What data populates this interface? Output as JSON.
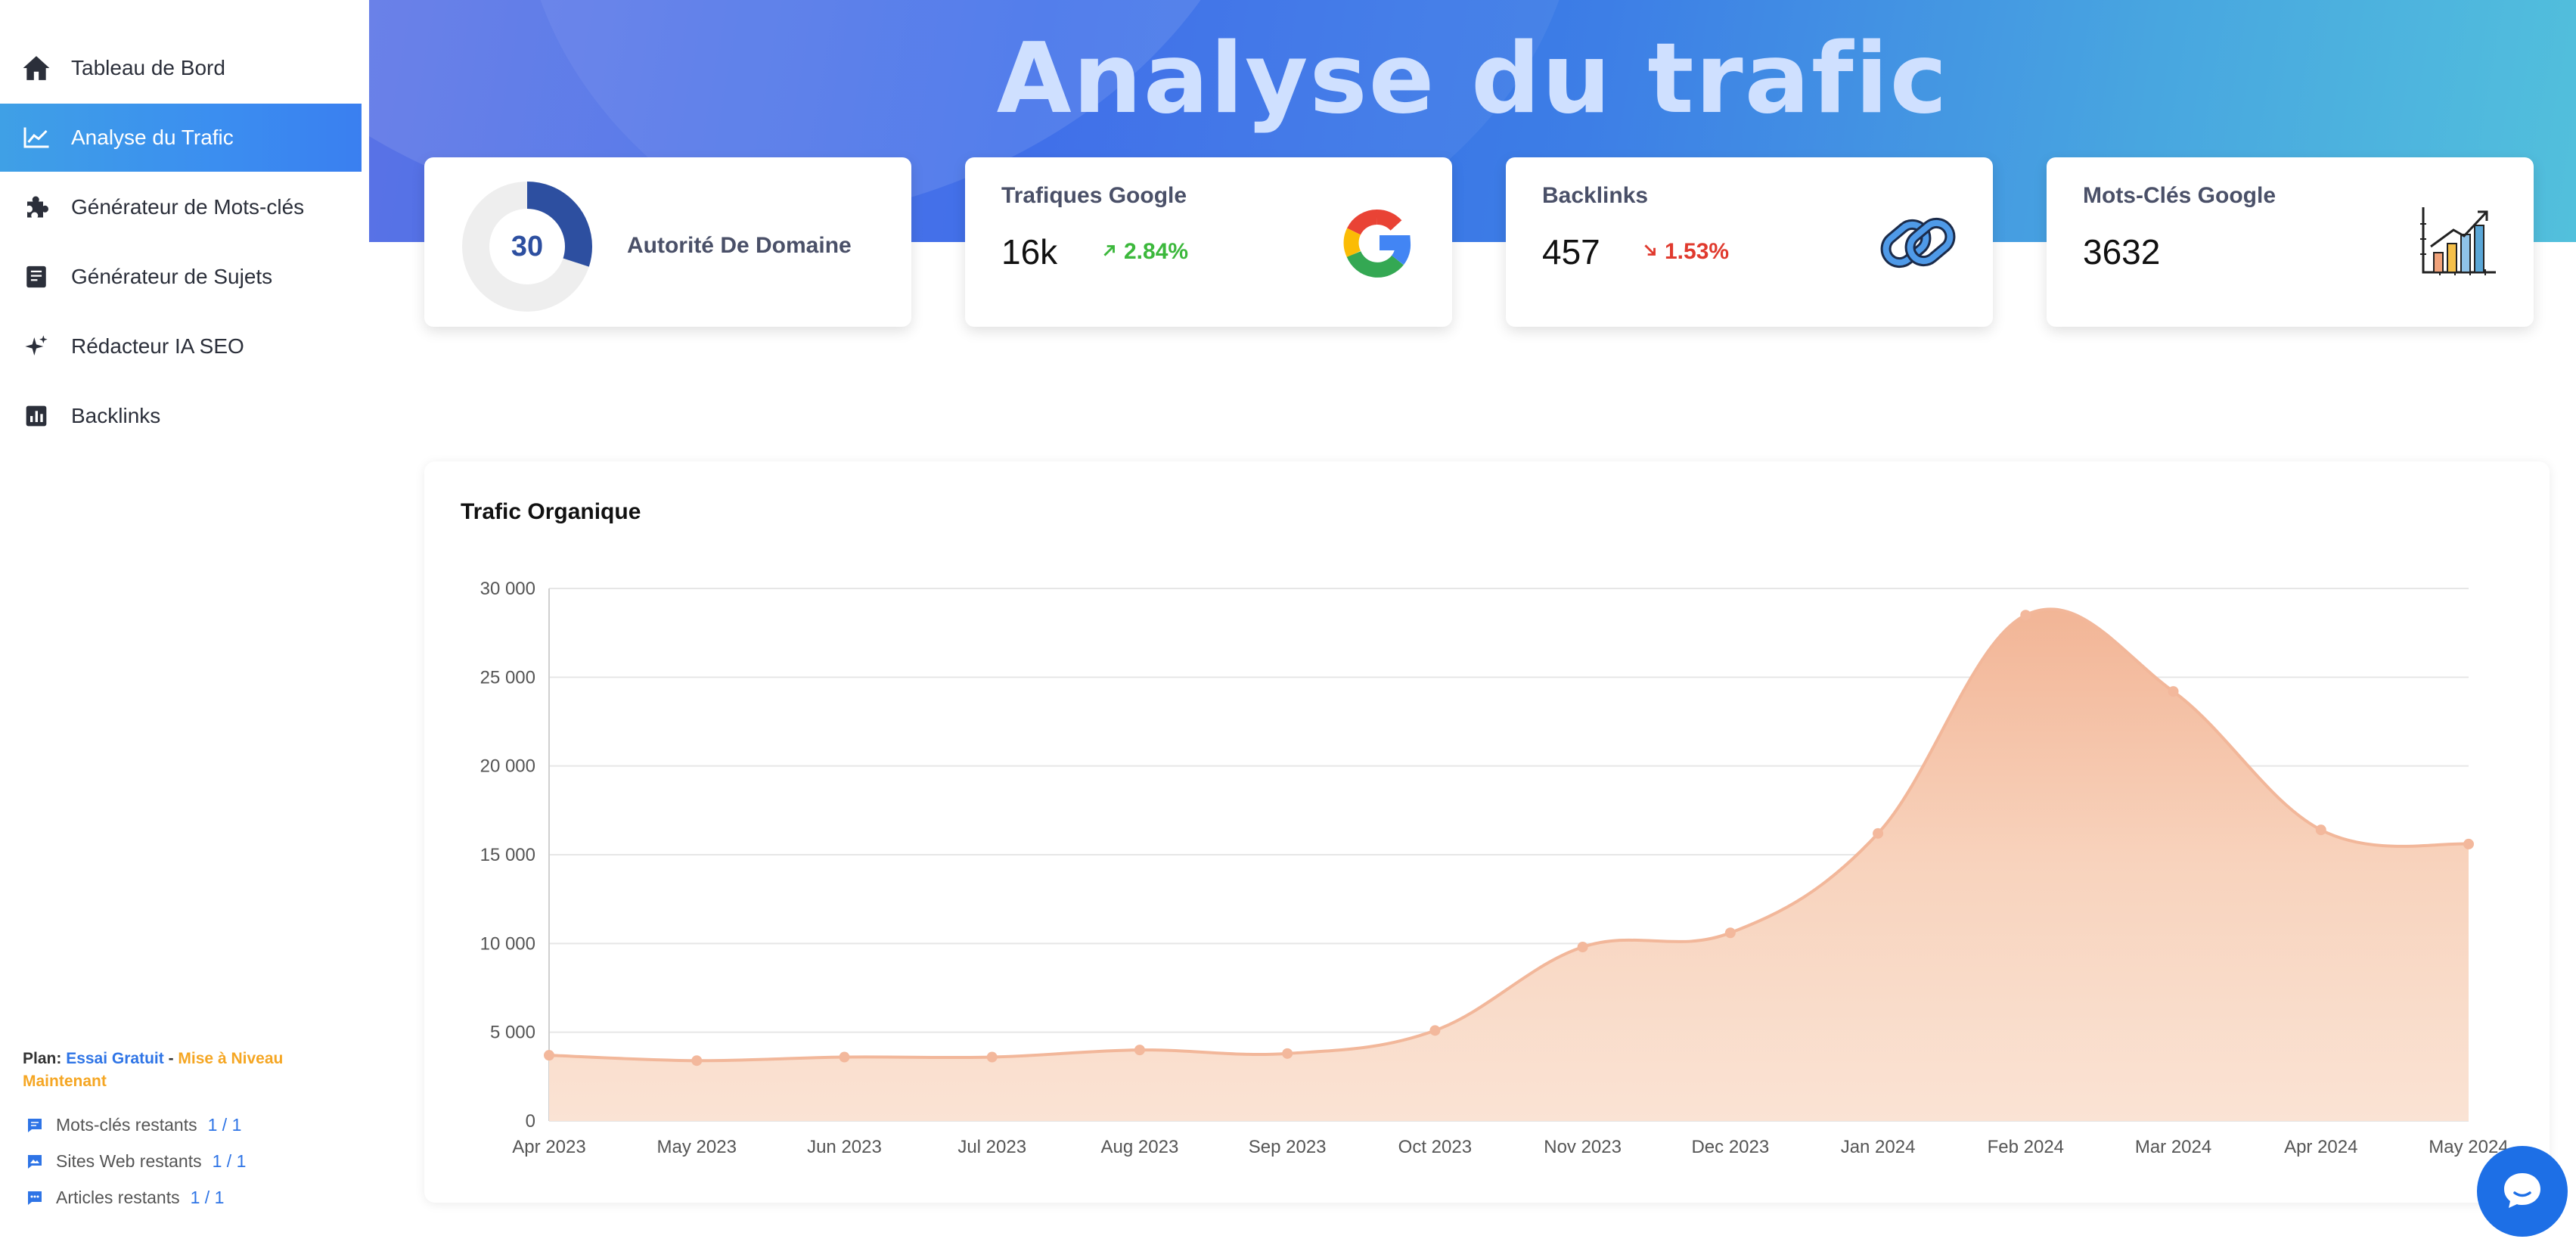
{
  "sidebar": {
    "items": [
      {
        "label": "Tableau de Bord",
        "icon": "home-icon"
      },
      {
        "label": "Analyse du Trafic",
        "icon": "line-chart-icon",
        "active": true
      },
      {
        "label": "Générateur de Mots-clés",
        "icon": "puzzle-icon"
      },
      {
        "label": "Générateur de Sujets",
        "icon": "notebook-icon"
      },
      {
        "label": "Rédacteur IA SEO",
        "icon": "sparkle-icon"
      },
      {
        "label": "Backlinks",
        "icon": "bar-chart-icon"
      }
    ],
    "plan": {
      "prefix": "Plan: ",
      "trial": "Essai Gratuit",
      "separator": " - ",
      "upgrade": "Mise à Niveau Maintenant"
    },
    "quotas": [
      {
        "label": "Mots-clés restants",
        "value": "1 / 1",
        "icon": "message-icon"
      },
      {
        "label": "Sites Web restants",
        "value": "1 / 1",
        "icon": "image-message-icon"
      },
      {
        "label": "Articles restants",
        "value": "1 / 1",
        "icon": "comment-icon"
      }
    ]
  },
  "header": {
    "title": "Analyse du trafic"
  },
  "cards": {
    "domain_authority": {
      "value": "30",
      "label": "Autorité De Domaine",
      "fraction": 0.3
    },
    "google_traffic": {
      "title": "Trafiques Google",
      "value": "16k",
      "change": "2.84%",
      "direction": "up",
      "icon": "google-icon"
    },
    "backlinks": {
      "title": "Backlinks",
      "value": "457",
      "change": "1.53%",
      "direction": "down",
      "icon": "chain-link-icon"
    },
    "keywords": {
      "title": "Mots-Clés Google",
      "value": "3632",
      "icon": "growth-chart-icon"
    }
  },
  "colors": {
    "accent": "#3b8ef0",
    "up": "#3cb83c",
    "down": "#e03a2e",
    "area_fill": "#f8dcc9",
    "area_line": "#f2b79a",
    "gauge": "#2d4fa0"
  },
  "chart_data": {
    "type": "area",
    "title": "Trafic Organique",
    "x": [
      "Apr 2023",
      "May 2023",
      "Jun 2023",
      "Jul 2023",
      "Aug 2023",
      "Sep 2023",
      "Oct 2023",
      "Nov 2023",
      "Dec 2023",
      "Jan 2024",
      "Feb 2024",
      "Mar 2024",
      "Apr 2024",
      "May 2024"
    ],
    "series": [
      {
        "values": [
          3700,
          3400,
          3600,
          3600,
          4000,
          3800,
          5100,
          9800,
          10600,
          16200,
          28500,
          24200,
          16400,
          15600
        ]
      }
    ],
    "ylim": [
      0,
      30000
    ],
    "yticks": [
      "0",
      "5 000",
      "10 000",
      "15 000",
      "20 000",
      "25 000",
      "30 000"
    ],
    "grid": true,
    "legend": "none"
  }
}
